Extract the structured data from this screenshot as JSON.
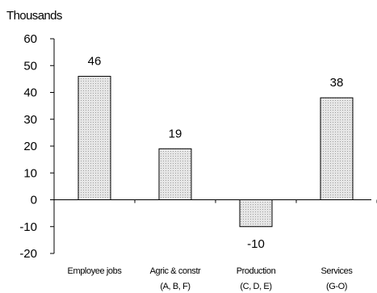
{
  "chart_data": {
    "type": "bar",
    "title": "",
    "units_label": "Thousands",
    "xlabel": "",
    "ylabel": "",
    "categories": [
      [
        "Employee jobs"
      ],
      [
        "Agric & constr",
        "(A, B, F)"
      ],
      [
        "Production",
        "(C, D, E)"
      ],
      [
        "Services",
        "(G-O)"
      ]
    ],
    "values": [
      46,
      19,
      -10,
      38
    ],
    "ylim": [
      -20,
      60
    ],
    "yticks": [
      -20,
      -10,
      0,
      10,
      20,
      30,
      40,
      50,
      60
    ],
    "grid": false,
    "legend": "none",
    "bar_fill": "#e6e6e6",
    "bar_dot": "#a0a0a0",
    "bar_stroke": "#000000",
    "axis_color": "#000000"
  }
}
